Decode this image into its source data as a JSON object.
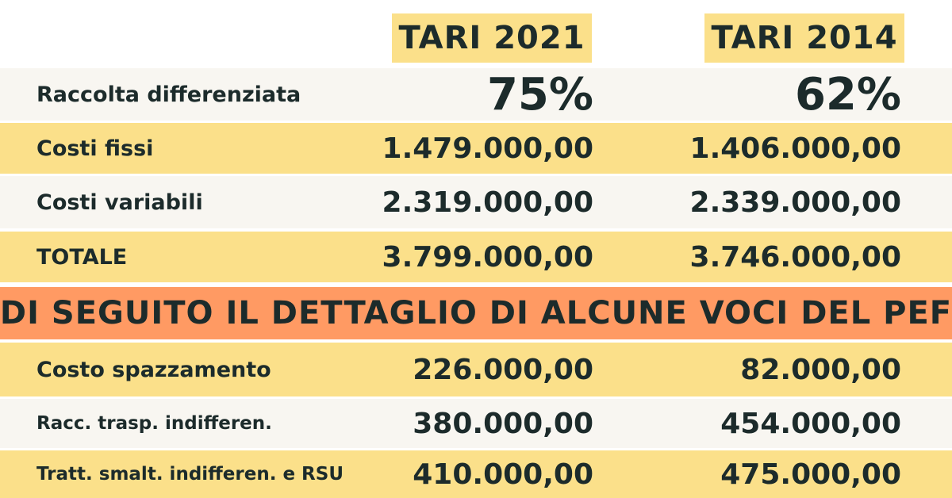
{
  "headers": {
    "col1": "TARI 2021",
    "col2": "TARI 2014"
  },
  "summary_rows": [
    {
      "label": "Raccolta differenziata",
      "v2021": "75%",
      "v2014": "62%"
    },
    {
      "label": "Costi fissi",
      "v2021": "1.479.000,00",
      "v2014": "1.406.000,00"
    },
    {
      "label": "Costi variabili",
      "v2021": "2.319.000,00",
      "v2014": "2.339.000,00"
    },
    {
      "label": "TOTALE",
      "v2021": "3.799.000,00",
      "v2014": "3.746.000,00"
    }
  ],
  "banner": "DI SEGUITO IL DETTAGLIO DI ALCUNE VOCI DEL PEF",
  "detail_rows": [
    {
      "label": "Costo spazzamento",
      "v2021": "226.000,00",
      "v2014": "82.000,00"
    },
    {
      "label": "Racc. trasp. indifferen.",
      "v2021": "380.000,00",
      "v2014": "454.000,00"
    },
    {
      "label": "Tratt. smalt. indifferen. e RSU",
      "v2021": "410.000,00",
      "v2014": "475.000,00"
    }
  ],
  "colors": {
    "yellow": "#fbe08a",
    "light": "#f8f6f1",
    "orange": "#ff9a63",
    "text": "#1c2b2b"
  }
}
